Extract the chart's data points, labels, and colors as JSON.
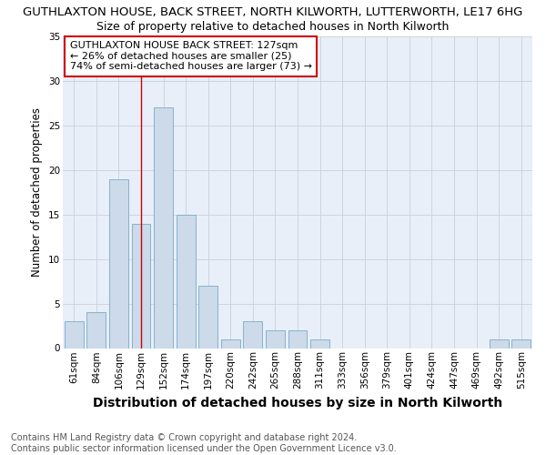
{
  "title": "GUTHLAXTON HOUSE, BACK STREET, NORTH KILWORTH, LUTTERWORTH, LE17 6HG",
  "subtitle": "Size of property relative to detached houses in North Kilworth",
  "xlabel": "Distribution of detached houses by size in North Kilworth",
  "ylabel": "Number of detached properties",
  "categories": [
    "61sqm",
    "84sqm",
    "106sqm",
    "129sqm",
    "152sqm",
    "174sqm",
    "197sqm",
    "220sqm",
    "242sqm",
    "265sqm",
    "288sqm",
    "311sqm",
    "333sqm",
    "356sqm",
    "379sqm",
    "401sqm",
    "424sqm",
    "447sqm",
    "469sqm",
    "492sqm",
    "515sqm"
  ],
  "values": [
    3,
    4,
    19,
    14,
    27,
    15,
    7,
    1,
    3,
    2,
    2,
    1,
    0,
    0,
    0,
    0,
    0,
    0,
    0,
    1,
    1
  ],
  "bar_color": "#ccdaea",
  "bar_edge_color": "#7aaac8",
  "vline_x": 3.0,
  "vline_color": "#cc0000",
  "annotation_text": "GUTHLAXTON HOUSE BACK STREET: 127sqm\n← 26% of detached houses are smaller (25)\n74% of semi-detached houses are larger (73) →",
  "annotation_box_color": "#ffffff",
  "annotation_box_edge": "#cc0000",
  "ylim": [
    0,
    35
  ],
  "yticks": [
    0,
    5,
    10,
    15,
    20,
    25,
    30,
    35
  ],
  "footer_line1": "Contains HM Land Registry data © Crown copyright and database right 2024.",
  "footer_line2": "Contains public sector information licensed under the Open Government Licence v3.0.",
  "bg_color": "#ffffff",
  "plot_bg_color": "#e8eff8",
  "grid_color": "#c8d0dc",
  "title_fontsize": 9.5,
  "subtitle_fontsize": 9.0,
  "xlabel_fontsize": 10.0,
  "ylabel_fontsize": 8.5,
  "annotation_fontsize": 8.0,
  "tick_fontsize": 7.5,
  "footer_fontsize": 7.0
}
